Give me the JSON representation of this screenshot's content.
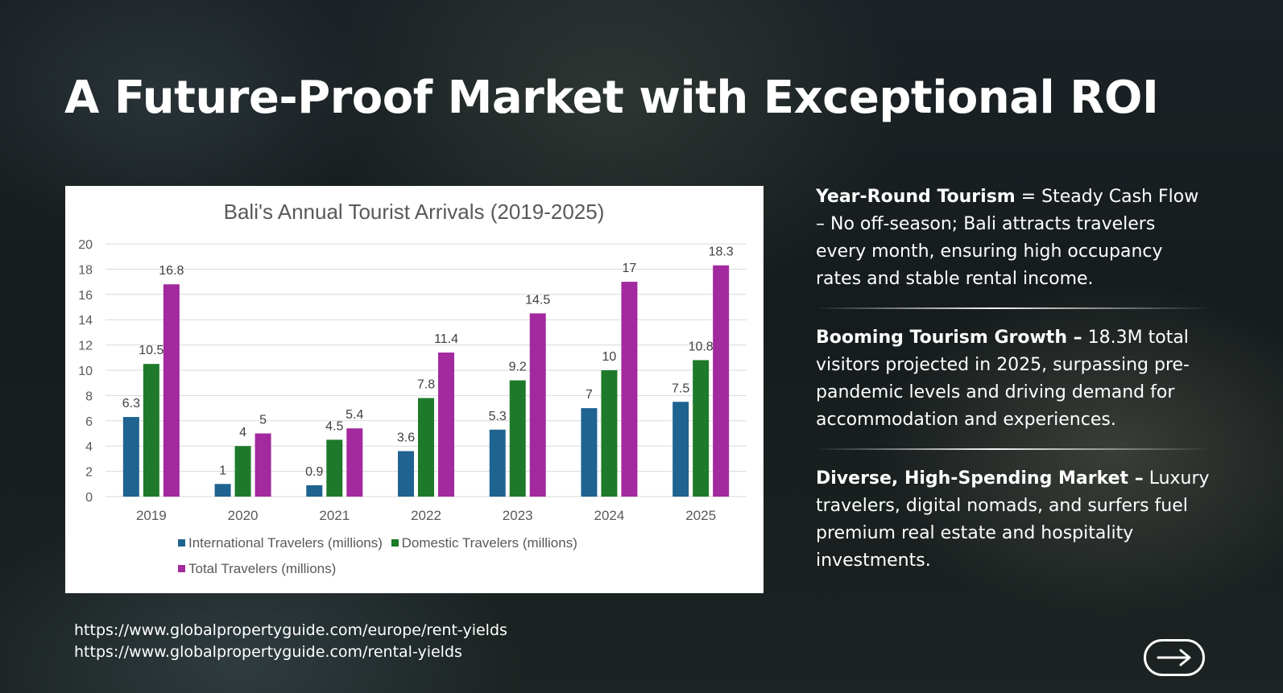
{
  "page": {
    "title": "A Future-Proof Market with Exceptional ROI"
  },
  "chart_data": {
    "type": "bar",
    "title": "Bali's Annual Tourist Arrivals (2019-2025)",
    "categories": [
      "2019",
      "2020",
      "2021",
      "2022",
      "2023",
      "2024",
      "2025"
    ],
    "series": [
      {
        "name": "International Travelers (millions)",
        "color": "#1f6391",
        "values": [
          6.3,
          1,
          0.9,
          3.6,
          5.3,
          7,
          7.5
        ]
      },
      {
        "name": "Domestic Travelers (millions)",
        "color": "#1e7a2a",
        "values": [
          10.5,
          4,
          4.5,
          7.8,
          9.2,
          10,
          10.8
        ]
      },
      {
        "name": "Total Travelers (millions)",
        "color": "#a3299e",
        "values": [
          16.8,
          5,
          5.4,
          11.4,
          14.5,
          17,
          18.3
        ]
      }
    ],
    "ylim": [
      0,
      20
    ],
    "yticks": [
      0,
      2,
      4,
      6,
      8,
      10,
      12,
      14,
      16,
      18,
      20
    ],
    "grid": true,
    "legend_position": "bottom",
    "xlabel": "",
    "ylabel": ""
  },
  "points": [
    {
      "heading": "Year-Round Tourism",
      "body": " = Steady Cash Flow – No off-season; Bali attracts travelers every month, ensuring high occupancy rates and stable rental income."
    },
    {
      "heading": "Booming Tourism Growth –",
      "body": " 18.3M total visitors projected in 2025, surpassing pre-pandemic levels and driving demand for accommodation and experiences."
    },
    {
      "heading": "Diverse, High-Spending Market –",
      "body": " Luxury travelers, digital nomads, and surfers fuel premium real estate and hospitality investments."
    }
  ],
  "sources": [
    "https://www.globalpropertyguide.com/europe/rent-yields",
    "https://www.globalpropertyguide.com/rental-yields"
  ],
  "nav": {
    "next_icon": "arrow-right-icon"
  }
}
